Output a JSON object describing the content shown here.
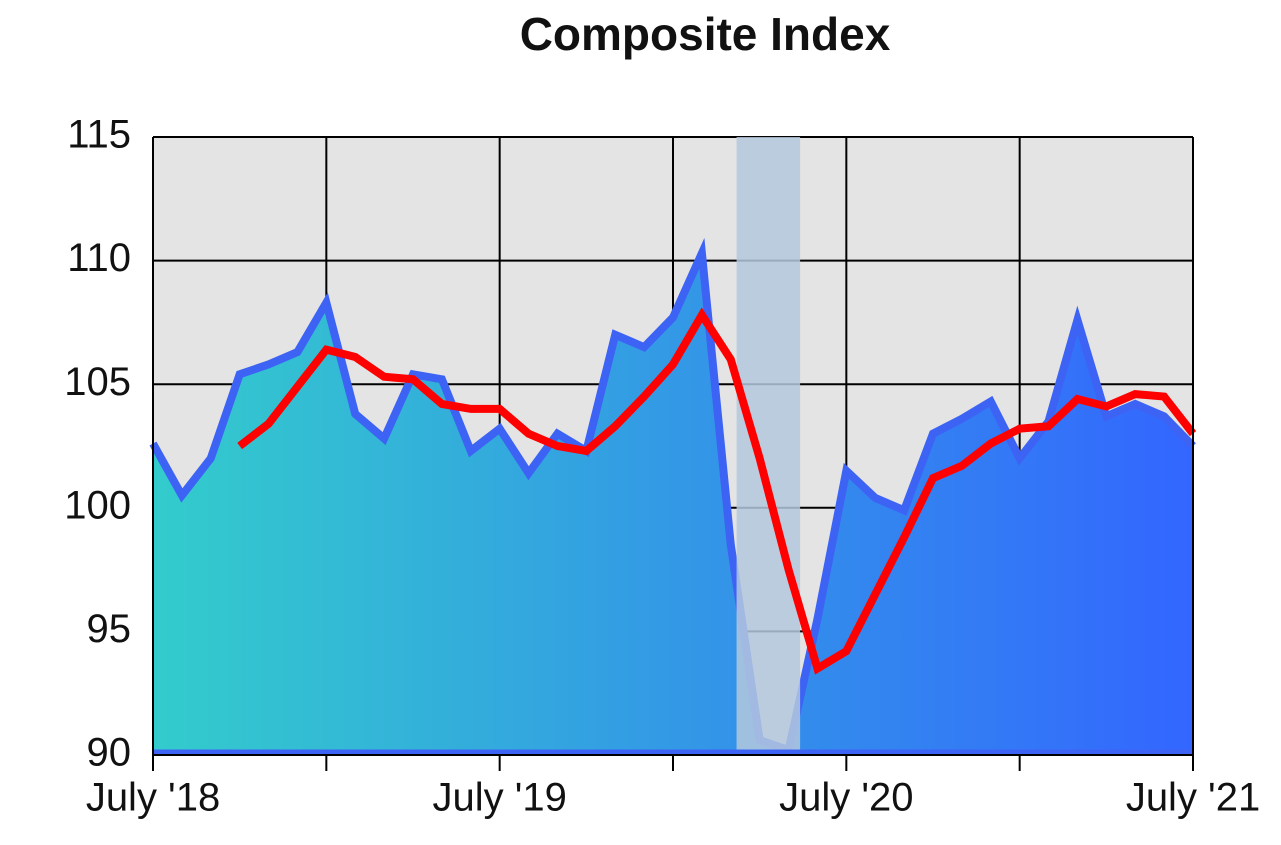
{
  "chart_data": {
    "type": "line",
    "title": "Composite Index",
    "categories": [
      "July '18",
      null,
      null,
      null,
      null,
      null,
      null,
      null,
      null,
      null,
      null,
      null,
      "July '19",
      null,
      null,
      null,
      null,
      null,
      null,
      null,
      null,
      null,
      null,
      null,
      "July '20",
      null,
      null,
      null,
      null,
      null,
      null,
      null,
      null,
      null,
      null,
      null,
      "July '21"
    ],
    "series": [
      {
        "color": "#3d63f5",
        "area": true,
        "values": [
          102.6,
          100.5,
          102.0,
          105.4,
          105.8,
          106.3,
          108.3,
          103.8,
          102.8,
          105.4,
          105.2,
          102.3,
          103.2,
          101.4,
          103.0,
          102.3,
          107.0,
          106.5,
          107.7,
          110.3,
          98.5,
          90.6,
          90.2,
          95.5,
          101.5,
          100.4,
          99.9,
          103.0,
          103.6,
          104.3,
          102.0,
          103.5,
          107.6,
          103.7,
          104.2,
          103.7,
          102.5
        ]
      },
      {
        "color": "#ff0000",
        "values": [
          null,
          null,
          null,
          102.5,
          103.4,
          104.9,
          106.4,
          106.1,
          105.3,
          105.2,
          104.2,
          104.0,
          104.0,
          103.0,
          102.5,
          102.3,
          103.3,
          104.5,
          105.8,
          107.8,
          106.0,
          102.0,
          97.5,
          93.5,
          94.2,
          96.5,
          98.8,
          101.2,
          101.7,
          102.6,
          103.2,
          103.3,
          104.4,
          104.1,
          104.6,
          104.5,
          103.0
        ]
      }
    ],
    "shaded_range": [
      20.2,
      22.4
    ],
    "ylim": [
      90,
      115
    ],
    "yticks": [
      90,
      95,
      100,
      105,
      110,
      115
    ],
    "grid": true
  }
}
